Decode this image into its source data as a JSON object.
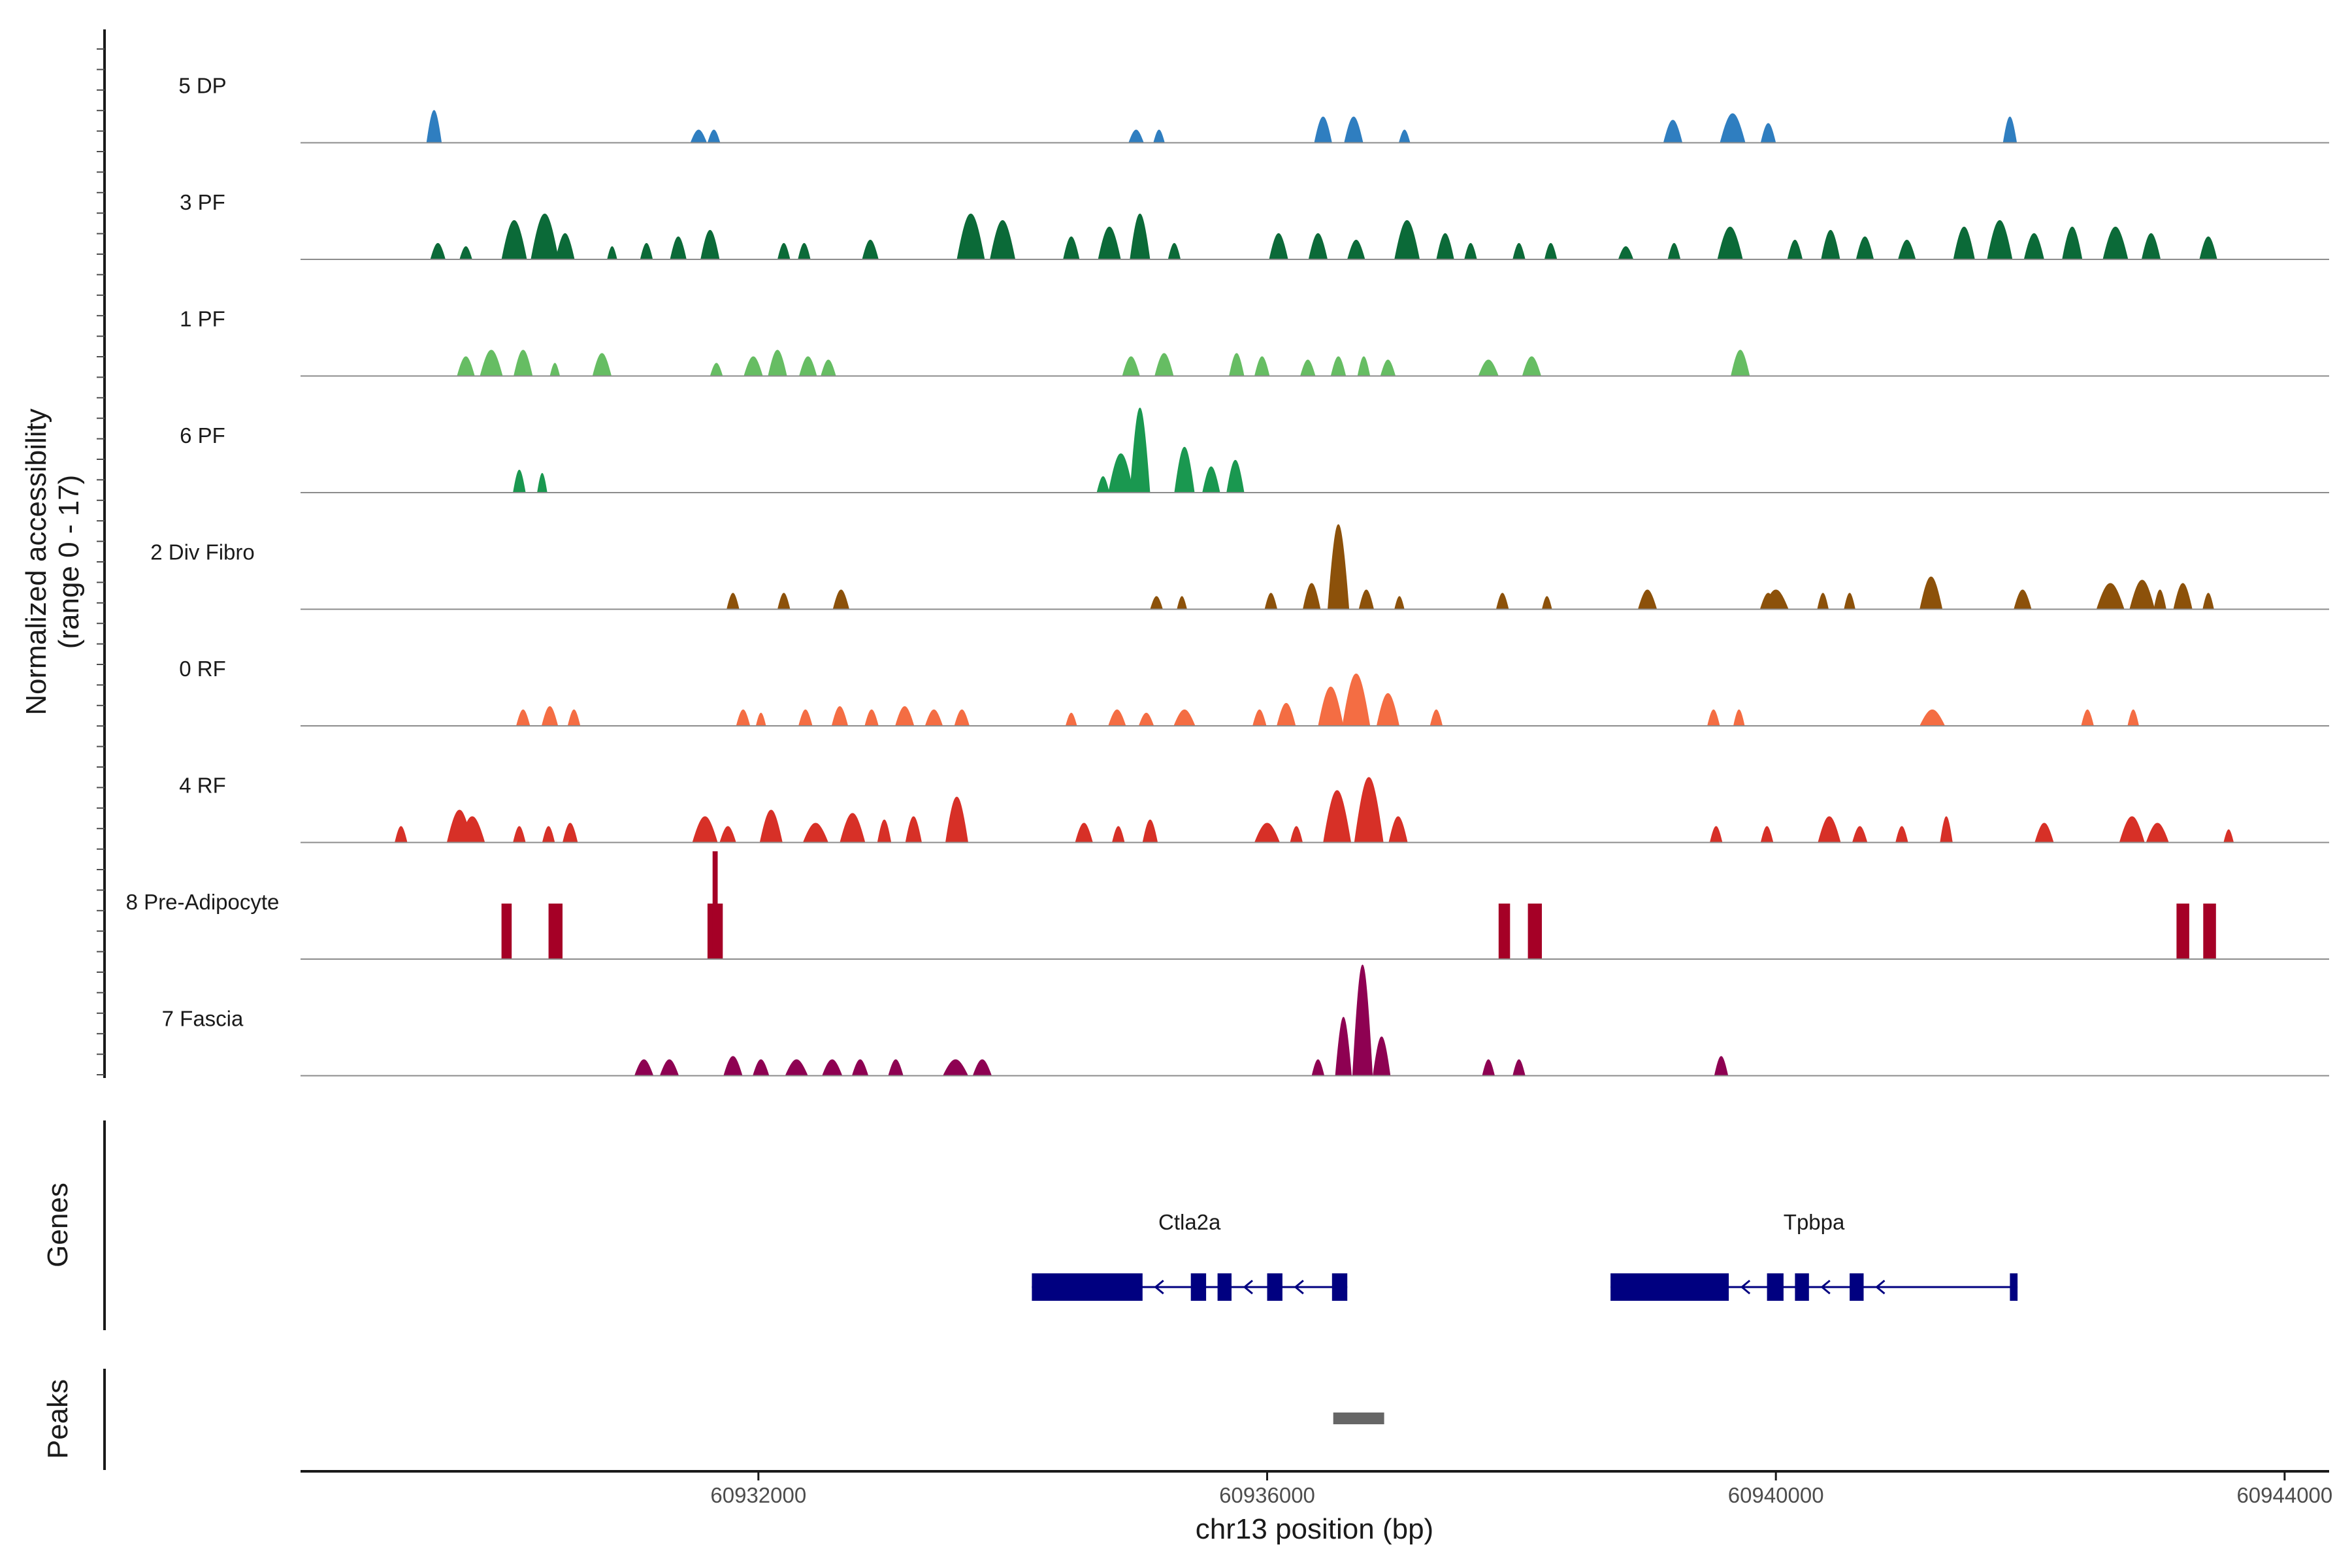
{
  "chart_data": {
    "type": "area",
    "title": "",
    "xlabel": "chr13 position (bp)",
    "ylabel_line1": "Normalized accessibility",
    "ylabel_line2": "(range 0 - 17)",
    "ylim": [
      0,
      17
    ],
    "xlim": [
      60928400,
      60944350
    ],
    "xticks": [
      60932000,
      60936000,
      60940000,
      60944000
    ],
    "tracks": [
      {
        "name": "5 DP",
        "color": "#2f7ec0",
        "peaks": [
          [
            60929450,
            5.0,
            120
          ],
          [
            60931530,
            2.0,
            130
          ],
          [
            60931650,
            2.0,
            100
          ],
          [
            60934970,
            2.0,
            120
          ],
          [
            60935150,
            2.0,
            90
          ],
          [
            60936440,
            4.0,
            140
          ],
          [
            60936680,
            4.0,
            150
          ],
          [
            60937080,
            2.0,
            90
          ],
          [
            60939190,
            3.5,
            150
          ],
          [
            60939660,
            4.5,
            200
          ],
          [
            60939940,
            3.0,
            120
          ],
          [
            60941840,
            4.0,
            110
          ]
        ]
      },
      {
        "name": "3 PF",
        "color": "#0b6a38",
        "peaks": [
          [
            60929480,
            2.5,
            120
          ],
          [
            60929700,
            2.0,
            100
          ],
          [
            60930080,
            6.0,
            200
          ],
          [
            60930320,
            7.0,
            220
          ],
          [
            60930480,
            4.0,
            150
          ],
          [
            60930850,
            2.0,
            80
          ],
          [
            60931120,
            2.5,
            100
          ],
          [
            60931370,
            3.5,
            130
          ],
          [
            60931620,
            4.5,
            150
          ],
          [
            60932200,
            2.5,
            100
          ],
          [
            60932360,
            2.5,
            100
          ],
          [
            60932880,
            3.0,
            130
          ],
          [
            60933670,
            7.0,
            220
          ],
          [
            60933920,
            6.0,
            200
          ],
          [
            60934460,
            3.5,
            130
          ],
          [
            60934760,
            5.0,
            180
          ],
          [
            60935000,
            7.0,
            160
          ],
          [
            60935270,
            2.5,
            100
          ],
          [
            60936090,
            4.0,
            150
          ],
          [
            60936400,
            4.0,
            150
          ],
          [
            60936700,
            3.0,
            140
          ],
          [
            60937100,
            6.0,
            200
          ],
          [
            60937400,
            4.0,
            140
          ],
          [
            60937600,
            2.5,
            100
          ],
          [
            60937980,
            2.5,
            100
          ],
          [
            60938230,
            2.5,
            100
          ],
          [
            60938820,
            2.0,
            120
          ],
          [
            60939200,
            2.5,
            100
          ],
          [
            60939640,
            5.0,
            200
          ],
          [
            60940150,
            3.0,
            120
          ],
          [
            60940430,
            4.5,
            150
          ],
          [
            60940700,
            3.5,
            140
          ],
          [
            60941030,
            3.0,
            140
          ],
          [
            60941480,
            5.0,
            170
          ],
          [
            60941760,
            6.0,
            200
          ],
          [
            60942030,
            4.0,
            160
          ],
          [
            60942330,
            5.0,
            160
          ],
          [
            60942670,
            5.0,
            200
          ],
          [
            60942950,
            4.0,
            150
          ],
          [
            60943400,
            3.5,
            140
          ]
        ]
      },
      {
        "name": "1 PF",
        "color": "#66bd63",
        "peaks": [
          [
            60929700,
            3.0,
            140
          ],
          [
            60929900,
            4.0,
            180
          ],
          [
            60930150,
            4.0,
            150
          ],
          [
            60930400,
            2.0,
            80
          ],
          [
            60930770,
            3.5,
            150
          ],
          [
            60931670,
            2.0,
            100
          ],
          [
            60931960,
            3.0,
            150
          ],
          [
            60932150,
            4.0,
            150
          ],
          [
            60932390,
            3.0,
            140
          ],
          [
            60932550,
            2.5,
            120
          ],
          [
            60934930,
            3.0,
            140
          ],
          [
            60935190,
            3.5,
            150
          ],
          [
            60935760,
            3.5,
            120
          ],
          [
            60935960,
            3.0,
            120
          ],
          [
            60936320,
            2.5,
            120
          ],
          [
            60936560,
            3.0,
            120
          ],
          [
            60936760,
            3.0,
            100
          ],
          [
            60936950,
            2.5,
            120
          ],
          [
            60937740,
            2.5,
            160
          ],
          [
            60938080,
            3.0,
            150
          ],
          [
            60939720,
            4.0,
            150
          ]
        ]
      },
      {
        "name": "6 PF",
        "color": "#1a9850",
        "peaks": [
          [
            60930120,
            3.5,
            100
          ],
          [
            60930300,
            3.0,
            80
          ],
          [
            60934710,
            2.5,
            100
          ],
          [
            60934850,
            6.0,
            200
          ],
          [
            60935000,
            13.0,
            160
          ],
          [
            60935350,
            7.0,
            160
          ],
          [
            60935560,
            4.0,
            140
          ],
          [
            60935750,
            5.0,
            140
          ]
        ]
      },
      {
        "name": "2 Div Fibro",
        "color": "#8c510a",
        "peaks": [
          [
            60931800,
            2.5,
            100
          ],
          [
            60932200,
            2.5,
            100
          ],
          [
            60932650,
            3.0,
            130
          ],
          [
            60935130,
            2.0,
            100
          ],
          [
            60935330,
            2.0,
            80
          ],
          [
            60936030,
            2.5,
            100
          ],
          [
            60936350,
            4.0,
            140
          ],
          [
            60936560,
            13.0,
            170
          ],
          [
            60936780,
            3.0,
            120
          ],
          [
            60937040,
            2.0,
            80
          ],
          [
            60937850,
            2.5,
            100
          ],
          [
            60938200,
            2.0,
            80
          ],
          [
            60938990,
            3.0,
            150
          ],
          [
            60939940,
            2.5,
            130
          ],
          [
            60940000,
            3.0,
            200
          ],
          [
            60940370,
            2.5,
            90
          ],
          [
            60940580,
            2.5,
            90
          ],
          [
            60941220,
            5.0,
            180
          ],
          [
            60941940,
            3.0,
            140
          ],
          [
            60942630,
            4.0,
            220
          ],
          [
            60942880,
            4.5,
            200
          ],
          [
            60943020,
            3.0,
            100
          ],
          [
            60943200,
            4.0,
            150
          ],
          [
            60943400,
            2.5,
            90
          ]
        ]
      },
      {
        "name": "0 RF",
        "color": "#f46d43",
        "peaks": [
          [
            60930150,
            2.5,
            110
          ],
          [
            60930360,
            3.0,
            130
          ],
          [
            60930550,
            2.5,
            100
          ],
          [
            60931880,
            2.5,
            110
          ],
          [
            60932020,
            2.0,
            80
          ],
          [
            60932370,
            2.5,
            110
          ],
          [
            60932640,
            3.0,
            130
          ],
          [
            60932890,
            2.5,
            110
          ],
          [
            60933150,
            3.0,
            150
          ],
          [
            60933380,
            2.5,
            140
          ],
          [
            60933600,
            2.5,
            120
          ],
          [
            60934460,
            2.0,
            90
          ],
          [
            60934820,
            2.5,
            140
          ],
          [
            60935050,
            2.0,
            120
          ],
          [
            60935350,
            2.5,
            170
          ],
          [
            60935940,
            2.5,
            110
          ],
          [
            60936150,
            3.5,
            150
          ],
          [
            60936500,
            6.0,
            200
          ],
          [
            60936700,
            8.0,
            220
          ],
          [
            60936950,
            5.0,
            180
          ],
          [
            60937330,
            2.5,
            100
          ],
          [
            60939510,
            2.5,
            100
          ],
          [
            60939710,
            2.5,
            90
          ],
          [
            60941230,
            2.5,
            200
          ],
          [
            60942450,
            2.5,
            100
          ],
          [
            60942810,
            2.5,
            90
          ]
        ]
      },
      {
        "name": "4 RF",
        "color": "#d73027",
        "peaks": [
          [
            60929190,
            2.5,
            100
          ],
          [
            60929650,
            5.0,
            200
          ],
          [
            60929750,
            4.0,
            200
          ],
          [
            60930120,
            2.5,
            100
          ],
          [
            60930350,
            2.5,
            100
          ],
          [
            60930520,
            3.0,
            120
          ],
          [
            60931580,
            4.0,
            200
          ],
          [
            60931760,
            2.5,
            130
          ],
          [
            60932100,
            5.0,
            180
          ],
          [
            60932450,
            3.0,
            200
          ],
          [
            60932740,
            4.5,
            200
          ],
          [
            60932990,
            3.5,
            110
          ],
          [
            60933220,
            4.0,
            130
          ],
          [
            60933560,
            7.0,
            180
          ],
          [
            60934560,
            3.0,
            140
          ],
          [
            60934830,
            2.5,
            100
          ],
          [
            60935080,
            3.5,
            120
          ],
          [
            60936000,
            3.0,
            200
          ],
          [
            60936230,
            2.5,
            100
          ],
          [
            60936550,
            8.0,
            220
          ],
          [
            60936800,
            10.0,
            230
          ],
          [
            60937030,
            4.0,
            150
          ],
          [
            60939530,
            2.5,
            100
          ],
          [
            60939930,
            2.5,
            100
          ],
          [
            60940420,
            4.0,
            180
          ],
          [
            60940660,
            2.5,
            120
          ],
          [
            60940990,
            2.5,
            100
          ],
          [
            60941340,
            4.0,
            100
          ],
          [
            60942110,
            3.0,
            150
          ],
          [
            60942800,
            4.0,
            200
          ],
          [
            60943000,
            3.0,
            180
          ],
          [
            60943560,
            2.0,
            80
          ]
        ]
      },
      {
        "name": "8 Pre-Adipocyte",
        "color": "#a50026",
        "blocks": [
          [
            60929980,
            60930060,
            8.5
          ],
          [
            60930350,
            60930460,
            8.5
          ],
          [
            60931600,
            60931720,
            8.5
          ],
          [
            60931640,
            60931680,
            16.5
          ],
          [
            60937820,
            60937910,
            8.5
          ],
          [
            60938050,
            60938160,
            8.5
          ],
          [
            60943150,
            60943250,
            8.5
          ],
          [
            60943360,
            60943460,
            8.5
          ]
        ]
      },
      {
        "name": "7 Fascia",
        "color": "#8e0152",
        "peaks": [
          [
            60931100,
            2.5,
            150
          ],
          [
            60931300,
            2.5,
            150
          ],
          [
            60931800,
            3.0,
            150
          ],
          [
            60932020,
            2.5,
            130
          ],
          [
            60932300,
            2.5,
            180
          ],
          [
            60932580,
            2.5,
            160
          ],
          [
            60932800,
            2.5,
            130
          ],
          [
            60933080,
            2.5,
            120
          ],
          [
            60933550,
            2.5,
            200
          ],
          [
            60933760,
            2.5,
            150
          ],
          [
            60936400,
            2.5,
            100
          ],
          [
            60936600,
            9.0,
            130
          ],
          [
            60936750,
            17.0,
            160
          ],
          [
            60936900,
            6.0,
            140
          ],
          [
            60937740,
            2.5,
            100
          ],
          [
            60937980,
            2.5,
            100
          ],
          [
            60939570,
            3.0,
            110
          ]
        ]
      }
    ],
    "genes_panel_label": "Genes",
    "genes": [
      {
        "name": "Ctla2a",
        "strand": "-",
        "start": 60934150,
        "end": 60936630,
        "exons": [
          [
            60934150,
            60935020
          ],
          [
            60935400,
            60935520
          ],
          [
            60935610,
            60935720
          ],
          [
            60936000,
            60936120
          ],
          [
            60936510,
            60936630
          ]
        ]
      },
      {
        "name": "Tpbpa",
        "strand": "-",
        "start": 60938700,
        "end": 60941900,
        "exons": [
          [
            60938700,
            60939630
          ],
          [
            60939930,
            60940060
          ],
          [
            60940150,
            60940260
          ],
          [
            60940580,
            60940690
          ],
          [
            60941840,
            60941900
          ]
        ]
      }
    ],
    "peaks_panel_label": "Peaks",
    "peak_regions": [
      [
        60936520,
        60936920
      ]
    ],
    "colors": {
      "gene": "#000080",
      "peak_region": "#666666",
      "baseline": "#8c8c8c"
    }
  }
}
